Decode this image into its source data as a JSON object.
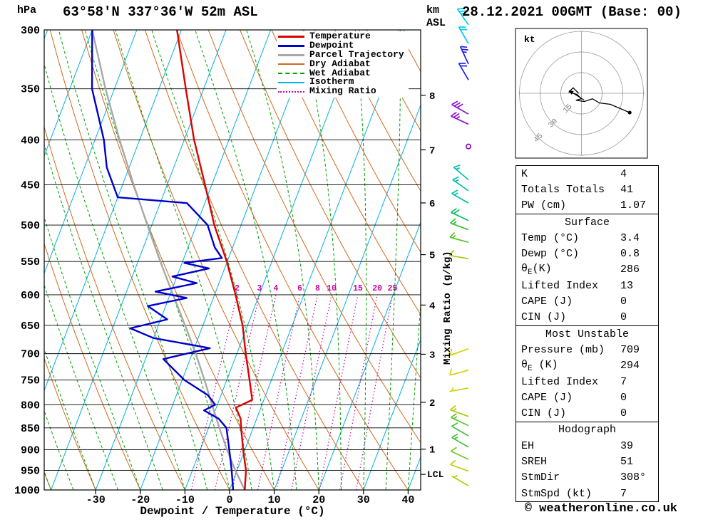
{
  "header": {
    "pressure_unit": "hPa",
    "station": "63°58'N 337°36'W 52m ASL",
    "altitude_unit_line1": "km",
    "altitude_unit_line2": "ASL",
    "datetime": "28.12.2021 00GMT (Base: 00)"
  },
  "axes": {
    "pressure_ticks": [
      300,
      350,
      400,
      450,
      500,
      550,
      600,
      650,
      700,
      750,
      800,
      850,
      900,
      950,
      1000
    ],
    "temp_ticks": [
      -30,
      -20,
      -10,
      0,
      10,
      20,
      30,
      40
    ],
    "km_ticks": [
      8,
      7,
      6,
      5,
      4,
      3,
      2,
      1
    ],
    "lcl_label": "LCL",
    "xlabel": "Dewpoint / Temperature (°C)",
    "right_label": "Mixing Ratio (g/kg)"
  },
  "legend": [
    {
      "label": "Temperature",
      "color": "#dd0000",
      "style": "solid",
      "width": 3
    },
    {
      "label": "Dewpoint",
      "color": "#0000cc",
      "style": "solid",
      "width": 3
    },
    {
      "label": "Parcel Trajectory",
      "color": "#a8a8a8",
      "style": "solid",
      "width": 3
    },
    {
      "label": "Dry Adiabat",
      "color": "#d2691e",
      "style": "solid",
      "width": 2
    },
    {
      "label": "Wet Adiabat",
      "color": "#00a000",
      "style": "dashed",
      "width": 2
    },
    {
      "label": "Isotherm",
      "color": "#00b0e0",
      "style": "solid",
      "width": 2
    },
    {
      "label": "Mixing Ratio",
      "color": "#cc00aa",
      "style": "dotted",
      "width": 2
    }
  ],
  "chart_data": {
    "type": "skewt",
    "pressure_range": [
      300,
      1000
    ],
    "temp_axis_range": [
      -40,
      45
    ],
    "skew": "isotherms slant right with height, log-pressure vertical axis",
    "mixing_ratio_labels": [
      2,
      3,
      4,
      6,
      8,
      10,
      15,
      20,
      25
    ],
    "lcl_pressure": 960,
    "temperature_profile": [
      [
        300,
        -51
      ],
      [
        350,
        -44
      ],
      [
        400,
        -37.8
      ],
      [
        450,
        -31.5
      ],
      [
        500,
        -26
      ],
      [
        550,
        -20.1
      ],
      [
        600,
        -15.3
      ],
      [
        650,
        -11.1
      ],
      [
        700,
        -8.0
      ],
      [
        750,
        -4.9
      ],
      [
        790,
        -2.6
      ],
      [
        806,
        -5.6
      ],
      [
        830,
        -3.6
      ],
      [
        850,
        -2.7
      ],
      [
        900,
        -0.4
      ],
      [
        950,
        2.0
      ],
      [
        1000,
        3.4
      ]
    ],
    "dewpoint_profile": [
      [
        300,
        -70
      ],
      [
        350,
        -65
      ],
      [
        400,
        -58
      ],
      [
        430,
        -55
      ],
      [
        465,
        -50
      ],
      [
        472,
        -34
      ],
      [
        500,
        -27.5
      ],
      [
        530,
        -24
      ],
      [
        545,
        -21.5
      ],
      [
        552,
        -29.5
      ],
      [
        560,
        -23.5
      ],
      [
        572,
        -31
      ],
      [
        582,
        -25
      ],
      [
        595,
        -33.5
      ],
      [
        605,
        -26
      ],
      [
        618,
        -34
      ],
      [
        640,
        -28.5
      ],
      [
        655,
        -36
      ],
      [
        672,
        -30
      ],
      [
        690,
        -16.5
      ],
      [
        710,
        -26
      ],
      [
        750,
        -19.5
      ],
      [
        780,
        -13
      ],
      [
        800,
        -10.5
      ],
      [
        812,
        -12.5
      ],
      [
        830,
        -8.5
      ],
      [
        850,
        -6
      ],
      [
        900,
        -3.5
      ],
      [
        950,
        -1.2
      ],
      [
        1000,
        0.8
      ]
    ],
    "parcel_profile": [
      [
        300,
        -70
      ],
      [
        350,
        -62
      ],
      [
        400,
        -54.5
      ],
      [
        450,
        -47.5
      ],
      [
        500,
        -41
      ],
      [
        550,
        -35
      ],
      [
        600,
        -29.3
      ],
      [
        650,
        -24
      ],
      [
        700,
        -19.2
      ],
      [
        750,
        -15
      ],
      [
        800,
        -11.2
      ],
      [
        850,
        -7.6
      ],
      [
        900,
        -4
      ],
      [
        950,
        -0.4
      ],
      [
        1000,
        3.4
      ]
    ]
  },
  "hodograph": {
    "unit": "kt",
    "rings": [
      15,
      30,
      45
    ],
    "trace_kt": [
      [
        -2,
        0
      ],
      [
        -6,
        -4
      ],
      [
        -9,
        -1
      ],
      [
        -3,
        1
      ],
      [
        0,
        4
      ],
      [
        -4,
        5
      ],
      [
        2,
        6
      ],
      [
        8,
        4
      ],
      [
        13,
        7
      ],
      [
        21,
        8
      ],
      [
        35,
        14
      ]
    ],
    "arrow_kt": {
      "from": [
        2,
        5
      ],
      "to": [
        -9,
        -2
      ]
    }
  },
  "winds": {
    "barbs": [
      {
        "p": 296,
        "dir": 325,
        "spd": 25,
        "color": "#00c8f0"
      },
      {
        "p": 311,
        "dir": 330,
        "spd": 20,
        "color": "#00c8f0"
      },
      {
        "p": 328,
        "dir": 335,
        "spd": 25,
        "color": "#2020e8"
      },
      {
        "p": 342,
        "dir": 330,
        "spd": 20,
        "color": "#2020e8"
      },
      {
        "p": 374,
        "dir": 300,
        "spd": 30,
        "color": "#9010d0"
      },
      {
        "p": 384,
        "dir": 295,
        "spd": 25,
        "color": "#9010d0"
      },
      {
        "p": 407,
        "dir": 0,
        "spd": 0,
        "color": "#8000c0"
      },
      {
        "p": 444,
        "dir": 310,
        "spd": 15,
        "color": "#00c0a8"
      },
      {
        "p": 457,
        "dir": 305,
        "spd": 15,
        "color": "#00c0a8"
      },
      {
        "p": 472,
        "dir": 300,
        "spd": 15,
        "color": "#00c0a8"
      },
      {
        "p": 494,
        "dir": 295,
        "spd": 20,
        "color": "#00c060"
      },
      {
        "p": 506,
        "dir": 290,
        "spd": 15,
        "color": "#30c030"
      },
      {
        "p": 523,
        "dir": 285,
        "spd": 15,
        "color": "#58c020"
      },
      {
        "p": 546,
        "dir": 280,
        "spd": 10,
        "color": "#98cc10"
      },
      {
        "p": 691,
        "dir": 250,
        "spd": 10,
        "color": "#d4d400"
      },
      {
        "p": 731,
        "dir": 255,
        "spd": 10,
        "color": "#d4d400"
      },
      {
        "p": 766,
        "dir": 260,
        "spd": 7,
        "color": "#d4d400"
      },
      {
        "p": 825,
        "dir": 290,
        "spd": 15,
        "color": "#a8cc00"
      },
      {
        "p": 845,
        "dir": 295,
        "spd": 15,
        "color": "#60c030"
      },
      {
        "p": 868,
        "dir": 300,
        "spd": 12,
        "color": "#40c040"
      },
      {
        "p": 894,
        "dir": 300,
        "spd": 15,
        "color": "#40c040"
      },
      {
        "p": 923,
        "dir": 295,
        "spd": 10,
        "color": "#70c820"
      },
      {
        "p": 952,
        "dir": 290,
        "spd": 10,
        "color": "#c8cc00"
      },
      {
        "p": 989,
        "dir": 300,
        "spd": 7,
        "color": "#aacc00"
      }
    ]
  },
  "table": {
    "sections": [
      {
        "rows": [
          [
            "K",
            "4"
          ],
          [
            "Totals Totals",
            "41"
          ],
          [
            "PW (cm)",
            "1.07"
          ]
        ]
      },
      {
        "header": "Surface",
        "rows": [
          [
            "Temp (°C)",
            "3.4"
          ],
          [
            "Dewp (°C)",
            "0.8"
          ],
          [
            "θ_E(K)",
            "286"
          ],
          [
            "Lifted Index",
            "13"
          ],
          [
            "CAPE (J)",
            "0"
          ],
          [
            "CIN (J)",
            "0"
          ]
        ]
      },
      {
        "header": "Most Unstable",
        "rows": [
          [
            "Pressure (mb)",
            "709"
          ],
          [
            "θ_E (K)",
            "294"
          ],
          [
            "Lifted Index",
            "7"
          ],
          [
            "CAPE (J)",
            "0"
          ],
          [
            "CIN (J)",
            "0"
          ]
        ]
      },
      {
        "header": "Hodograph",
        "rows": [
          [
            "EH",
            "39"
          ],
          [
            "SREH",
            "51"
          ],
          [
            "StmDir",
            "308°"
          ],
          [
            "StmSpd (kt)",
            "7"
          ]
        ]
      }
    ]
  },
  "footer": {
    "copyright": "© weatheronline.co.uk"
  },
  "colors": {
    "temperature": "#dd0000",
    "dewpoint": "#0000cc",
    "parcel": "#a8a8a8",
    "dry_adiabat": "#d2691e",
    "wet_adiabat": "#00a000",
    "isotherm": "#00b0e0",
    "mixing_ratio": "#cc00aa",
    "isobar": "#000000",
    "hodograph_grid": "#999999"
  }
}
